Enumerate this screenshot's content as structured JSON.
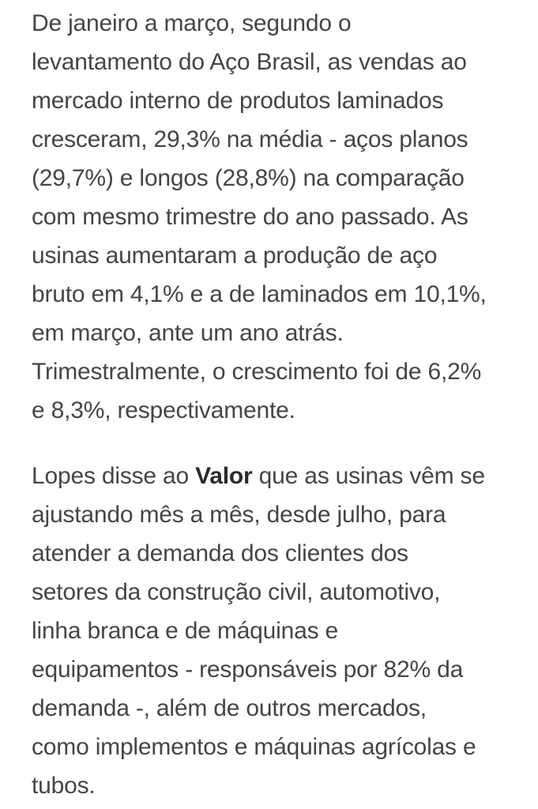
{
  "colors": {
    "background": "#ffffff",
    "body_text": "#454545",
    "bold_text": "#2b2b2b"
  },
  "article": {
    "paragraph1": "De janeiro a março, segundo o\nlevantamento do Aço Brasil, as vendas ao\nmercado interno de produtos laminados\ncresceram, 29,3% na média - aços planos\n(29,7%) e longos (28,8%) na comparação\ncom mesmo trimestre do ano passado. As\nusinas aumentaram a produção de aço\nbruto em 4,1% e a de laminados em 10,1%,\nem março, ante um ano atrás.\nTrimestralmente, o crescimento foi de 6,2%\ne 8,3%, respectivamente.",
    "paragraph2_before_bold": "Lopes disse ao ",
    "paragraph2_bold": "Valor",
    "paragraph2_after_bold": " que as usinas vêm se\najustando mês a mês, desde julho, para\natender a demanda dos clientes dos\nsetores da construção civil, automotivo,\nlinha branca e de máquinas e\nequipamentos - responsáveis por 82% da\ndemanda -, além de outros mercados,\ncomo implementos e máquinas agrícolas e\ntubos."
  }
}
